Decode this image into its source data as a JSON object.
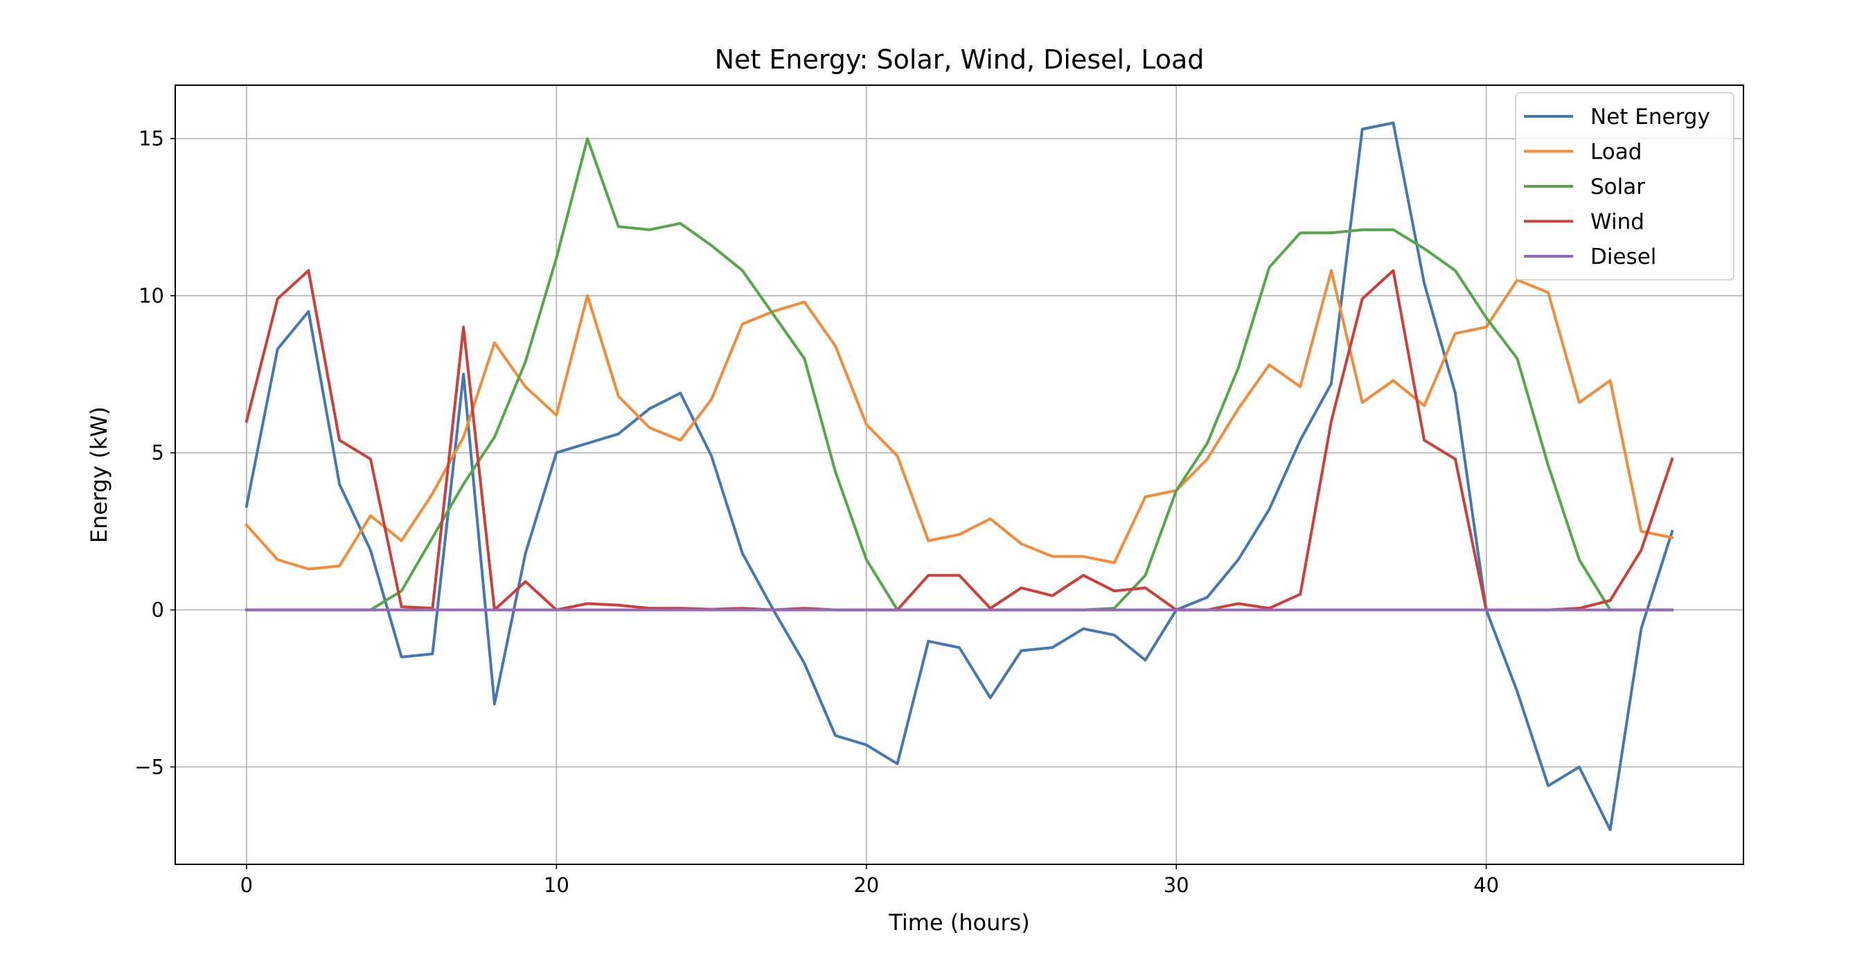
{
  "chart_data": {
    "type": "line",
    "title": "Net Energy: Solar, Wind, Diesel, Load",
    "xlabel": "Time (hours)",
    "ylabel": "Energy (kW)",
    "xlim": [
      -2.3,
      48.3
    ],
    "ylim": [
      -8.1,
      16.7
    ],
    "xticks": [
      0,
      10,
      20,
      30,
      40
    ],
    "yticks": [
      -5,
      0,
      5,
      10,
      15
    ],
    "xtick_labels": [
      "0",
      "10",
      "20",
      "30",
      "40"
    ],
    "ytick_labels": [
      "−5",
      "0",
      "5",
      "10",
      "15"
    ],
    "grid": true,
    "legend_position": "top-right",
    "x": [
      0,
      1,
      2,
      3,
      4,
      5,
      6,
      7,
      8,
      9,
      10,
      11,
      12,
      13,
      14,
      15,
      16,
      17,
      18,
      19,
      20,
      21,
      22,
      23,
      24,
      25,
      26,
      27,
      28,
      29,
      30,
      31,
      32,
      33,
      34,
      35,
      36,
      37,
      38,
      39,
      40,
      41,
      42,
      43,
      44,
      45,
      46
    ],
    "series": [
      {
        "name": "Net Energy",
        "color": "#4477b4",
        "values": [
          3.3,
          8.3,
          9.5,
          4.0,
          1.9,
          -1.5,
          -1.4,
          7.5,
          -3.0,
          1.8,
          5.0,
          5.3,
          5.6,
          6.4,
          6.9,
          4.9,
          1.8,
          0.0,
          -1.7,
          -4.0,
          -4.3,
          -4.9,
          -1.0,
          -1.2,
          -2.8,
          -1.3,
          -1.2,
          -0.6,
          -0.8,
          -1.6,
          0.0,
          0.4,
          1.6,
          3.2,
          5.4,
          7.2,
          15.3,
          15.5,
          10.4,
          6.9,
          0.0,
          -2.6,
          -5.6,
          -5.0,
          -7.0,
          -0.6,
          2.5
        ]
      },
      {
        "name": "Load",
        "color": "#f08c3a",
        "values": [
          2.7,
          1.6,
          1.3,
          1.4,
          3.0,
          2.2,
          3.7,
          5.5,
          8.5,
          7.1,
          6.2,
          10.0,
          6.8,
          5.8,
          5.4,
          6.7,
          9.1,
          9.5,
          9.8,
          8.4,
          5.9,
          4.9,
          2.2,
          2.4,
          2.9,
          2.1,
          1.7,
          1.7,
          1.5,
          3.6,
          3.8,
          4.8,
          6.4,
          7.8,
          7.1,
          10.8,
          6.6,
          7.3,
          6.5,
          8.8,
          9.0,
          10.5,
          10.1,
          6.6,
          7.3,
          2.5,
          2.3
        ]
      },
      {
        "name": "Solar",
        "color": "#56a64a",
        "values": [
          0,
          0,
          0,
          0,
          0,
          0.6,
          2.3,
          4.0,
          5.5,
          7.9,
          11.2,
          15.0,
          12.2,
          12.1,
          12.3,
          11.6,
          10.8,
          9.4,
          8.0,
          4.4,
          1.6,
          0,
          0,
          0,
          0,
          0,
          0,
          0,
          0.05,
          1.1,
          3.8,
          5.3,
          7.7,
          10.9,
          12.0,
          12.0,
          12.1,
          12.1,
          11.5,
          10.8,
          9.3,
          8.0,
          4.6,
          1.6,
          0,
          0,
          0
        ]
      },
      {
        "name": "Wind",
        "color": "#cc3f3a",
        "values": [
          6.0,
          9.9,
          10.8,
          5.4,
          4.8,
          0.1,
          0.05,
          9.0,
          0,
          0.9,
          0,
          0.2,
          0.15,
          0.05,
          0.05,
          0.02,
          0.05,
          0,
          0.05,
          0,
          0,
          0,
          1.1,
          1.1,
          0.05,
          0.7,
          0.45,
          1.1,
          0.6,
          0.7,
          0,
          0,
          0.2,
          0.05,
          0.5,
          6.0,
          9.9,
          10.8,
          5.4,
          4.8,
          0,
          0,
          0,
          0.05,
          0.3,
          1.9,
          4.8
        ]
      },
      {
        "name": "Diesel",
        "color": "#9467bd",
        "values": [
          0,
          0,
          0,
          0,
          0,
          0,
          0,
          0,
          0,
          0,
          0,
          0,
          0,
          0,
          0,
          0,
          0,
          0,
          0,
          0,
          0,
          0,
          0,
          0,
          0,
          0,
          0,
          0,
          0,
          0,
          0,
          0,
          0,
          0,
          0,
          0,
          0,
          0,
          0,
          0,
          0,
          0,
          0,
          0,
          0,
          0,
          0
        ]
      }
    ]
  }
}
